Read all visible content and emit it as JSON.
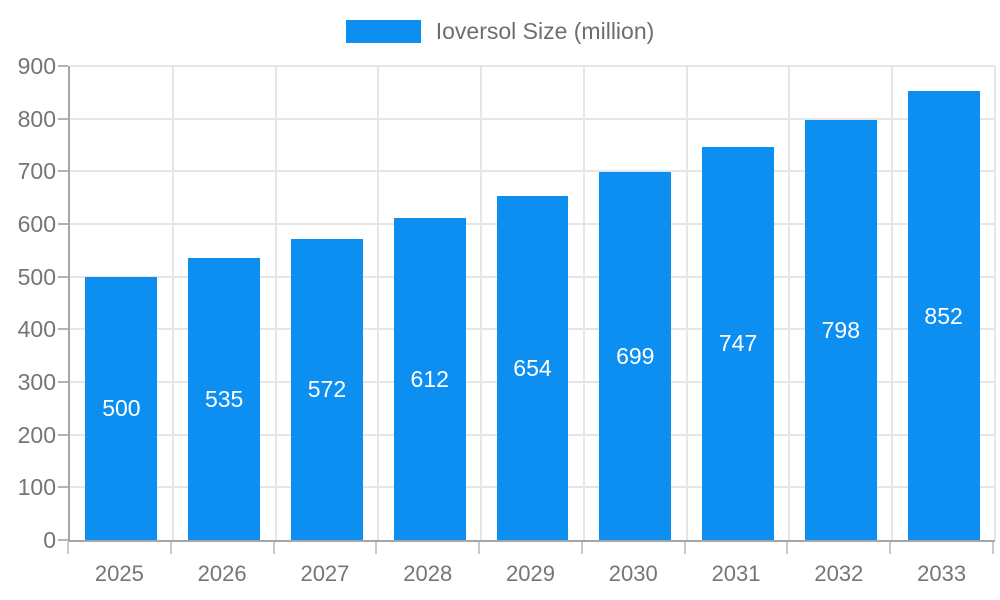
{
  "legend": {
    "label": "Ioversol Size (million)"
  },
  "colors": {
    "bar": "#0d8ff2",
    "grid": "#e6e6e6",
    "axis": "#a6a6a6",
    "tick_text": "#757575",
    "legend_text": "#6e6e6e",
    "bar_value_text": "#ffffff",
    "background": "#ffffff"
  },
  "chart_data": {
    "type": "bar",
    "title": "",
    "categories": [
      "2025",
      "2026",
      "2027",
      "2028",
      "2029",
      "2030",
      "2031",
      "2032",
      "2033"
    ],
    "series": [
      {
        "name": "Ioversol Size (million)",
        "values": [
          500,
          535,
          572,
          612,
          654,
          699,
          747,
          798,
          852
        ]
      }
    ],
    "xlabel": "",
    "ylabel": "",
    "ylim": [
      0,
      900
    ],
    "ytick_interval": 100,
    "yticks": [
      0,
      100,
      200,
      300,
      400,
      500,
      600,
      700,
      800,
      900
    ],
    "grid": true,
    "legend_position": "top-center",
    "value_labels": "inside-middle"
  }
}
